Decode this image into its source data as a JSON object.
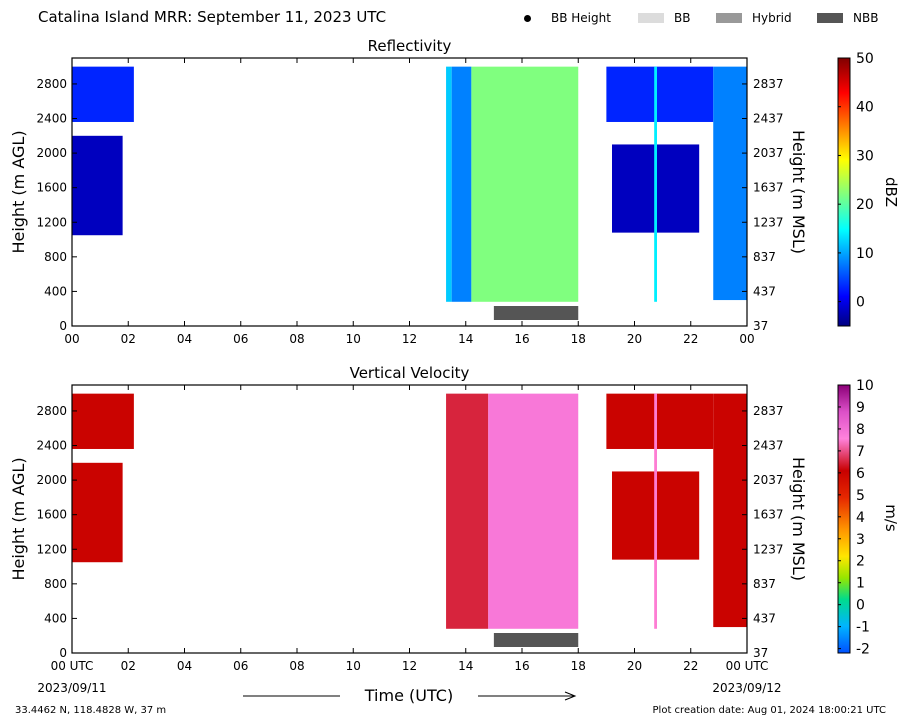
{
  "header": {
    "title": "Catalina Island MRR:  September 11, 2023 UTC",
    "legend": [
      {
        "label": "BB Height",
        "kind": "dot",
        "color": "#000000"
      },
      {
        "label": "BB",
        "kind": "swatch",
        "color": "#dcdcdc"
      },
      {
        "label": "Hybrid",
        "kind": "swatch",
        "color": "#999999"
      },
      {
        "label": "NBB",
        "kind": "swatch",
        "color": "#555555"
      }
    ]
  },
  "footer": {
    "coords": "33.4462 N, 118.4828 W, 37 m",
    "creation": "Plot creation date: Aug 01, 2024 18:00:21 UTC"
  },
  "chart_data": [
    {
      "type": "heatmap",
      "title": "Reflectivity",
      "ylabel": "Height (m AGL)",
      "ylabel_right": "Height (m MSL)",
      "xlim": [
        0,
        24
      ],
      "ylim": [
        0,
        3100
      ],
      "xticks": [
        "00",
        "02",
        "04",
        "06",
        "08",
        "10",
        "12",
        "14",
        "16",
        "18",
        "20",
        "22",
        "00"
      ],
      "yticks_left": [
        "0",
        "400",
        "800",
        "1200",
        "1600",
        "2000",
        "2400",
        "2800"
      ],
      "yticks_right": [
        "37",
        "437",
        "837",
        "1237",
        "1637",
        "2037",
        "2437",
        "2837"
      ],
      "colorbar": {
        "label": "dBZ",
        "min": -5,
        "max": 50,
        "ticks": [
          "0",
          "10",
          "20",
          "30",
          "40",
          "50"
        ]
      },
      "nbb_period": [
        15.0,
        18.0
      ],
      "echo_regions": [
        {
          "t_start": 0.0,
          "t_end": 2.2,
          "h_bottom": 2360,
          "h_top": 3000,
          "value": 3
        },
        {
          "t_start": 0.0,
          "t_end": 1.8,
          "h_bottom": 1050,
          "h_top": 2200,
          "value": -2
        },
        {
          "t_start": 13.3,
          "t_end": 13.5,
          "h_bottom": 280,
          "h_top": 3000,
          "value": 12
        },
        {
          "t_start": 13.5,
          "t_end": 14.2,
          "h_bottom": 280,
          "h_top": 3000,
          "value": 8
        },
        {
          "t_start": 14.2,
          "t_end": 18.0,
          "h_bottom": 280,
          "h_top": 3000,
          "value": 22
        },
        {
          "t_start": 19.0,
          "t_end": 22.8,
          "h_bottom": 2360,
          "h_top": 3000,
          "value": 3
        },
        {
          "t_start": 19.2,
          "t_end": 22.3,
          "h_bottom": 1080,
          "h_top": 2100,
          "value": -2
        },
        {
          "t_start": 20.7,
          "t_end": 20.8,
          "h_bottom": 280,
          "h_top": 3000,
          "value": 14
        },
        {
          "t_start": 22.8,
          "t_end": 24.0,
          "h_bottom": 300,
          "h_top": 3000,
          "value": 8
        }
      ]
    },
    {
      "type": "heatmap",
      "title": "Vertical Velocity",
      "ylabel": "Height (m AGL)",
      "ylabel_right": "Height (m MSL)",
      "xlabel": "Time (UTC)",
      "xlim": [
        0,
        24
      ],
      "ylim": [
        0,
        3100
      ],
      "xticks": [
        "00 UTC",
        "02",
        "04",
        "06",
        "08",
        "10",
        "12",
        "14",
        "16",
        "18",
        "20",
        "22",
        "00 UTC"
      ],
      "date_start": "2023/09/11",
      "date_end": "2023/09/12",
      "yticks_left": [
        "0",
        "400",
        "800",
        "1200",
        "1600",
        "2000",
        "2400",
        "2800"
      ],
      "yticks_right": [
        "37",
        "437",
        "837",
        "1237",
        "1637",
        "2037",
        "2437",
        "2837"
      ],
      "colorbar": {
        "label": "m/s",
        "min": -2.2,
        "max": 10,
        "ticks": [
          "-2",
          "-1",
          "0",
          "1",
          "2",
          "3",
          "4",
          "5",
          "6",
          "7",
          "8",
          "9",
          "10"
        ]
      },
      "nbb_period": [
        15.0,
        18.0
      ],
      "echo_regions": [
        {
          "t_start": 0.0,
          "t_end": 2.2,
          "h_bottom": 2360,
          "h_top": 3000,
          "value": 6
        },
        {
          "t_start": 0.0,
          "t_end": 1.8,
          "h_bottom": 1050,
          "h_top": 2200,
          "value": 6
        },
        {
          "t_start": 13.3,
          "t_end": 14.8,
          "h_bottom": 280,
          "h_top": 3000,
          "value": 6.5
        },
        {
          "t_start": 14.8,
          "t_end": 18.0,
          "h_bottom": 280,
          "h_top": 3000,
          "value": 7.8
        },
        {
          "t_start": 19.0,
          "t_end": 22.8,
          "h_bottom": 2360,
          "h_top": 3000,
          "value": 6
        },
        {
          "t_start": 19.2,
          "t_end": 22.3,
          "h_bottom": 1080,
          "h_top": 2100,
          "value": 6
        },
        {
          "t_start": 20.7,
          "t_end": 20.8,
          "h_bottom": 280,
          "h_top": 3000,
          "value": 7.5
        },
        {
          "t_start": 22.8,
          "t_end": 24.0,
          "h_bottom": 300,
          "h_top": 3000,
          "value": 6
        }
      ]
    }
  ]
}
